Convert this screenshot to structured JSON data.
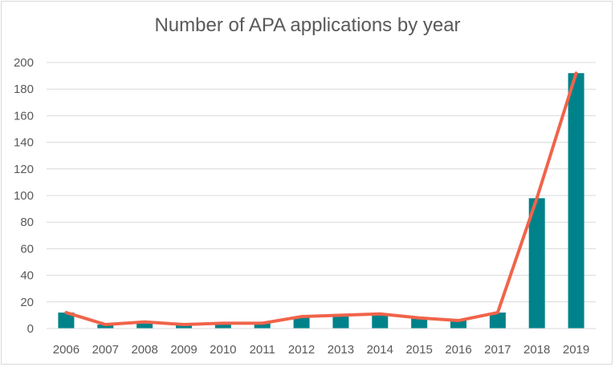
{
  "chart_data": {
    "type": "bar",
    "title": "Number of APA applications by year",
    "categories": [
      "2006",
      "2007",
      "2008",
      "2009",
      "2010",
      "2011",
      "2012",
      "2013",
      "2014",
      "2015",
      "2016",
      "2017",
      "2018",
      "2019"
    ],
    "series": [
      {
        "type": "bar",
        "values": [
          12,
          3,
          5,
          3,
          4,
          4,
          9,
          10,
          11,
          8,
          6,
          12,
          98,
          192
        ]
      },
      {
        "type": "line",
        "values": [
          12,
          3,
          5,
          3,
          4,
          4,
          9,
          10,
          11,
          8,
          6,
          12,
          98,
          192
        ]
      }
    ],
    "ylim": [
      0,
      200
    ],
    "yticks": [
      0,
      20,
      40,
      60,
      80,
      100,
      120,
      140,
      160,
      180,
      200
    ],
    "grid": true,
    "colors": {
      "bar": "#00828a",
      "line": "#f0644a",
      "grid": "#d9d9d9",
      "text": "#595959"
    }
  }
}
